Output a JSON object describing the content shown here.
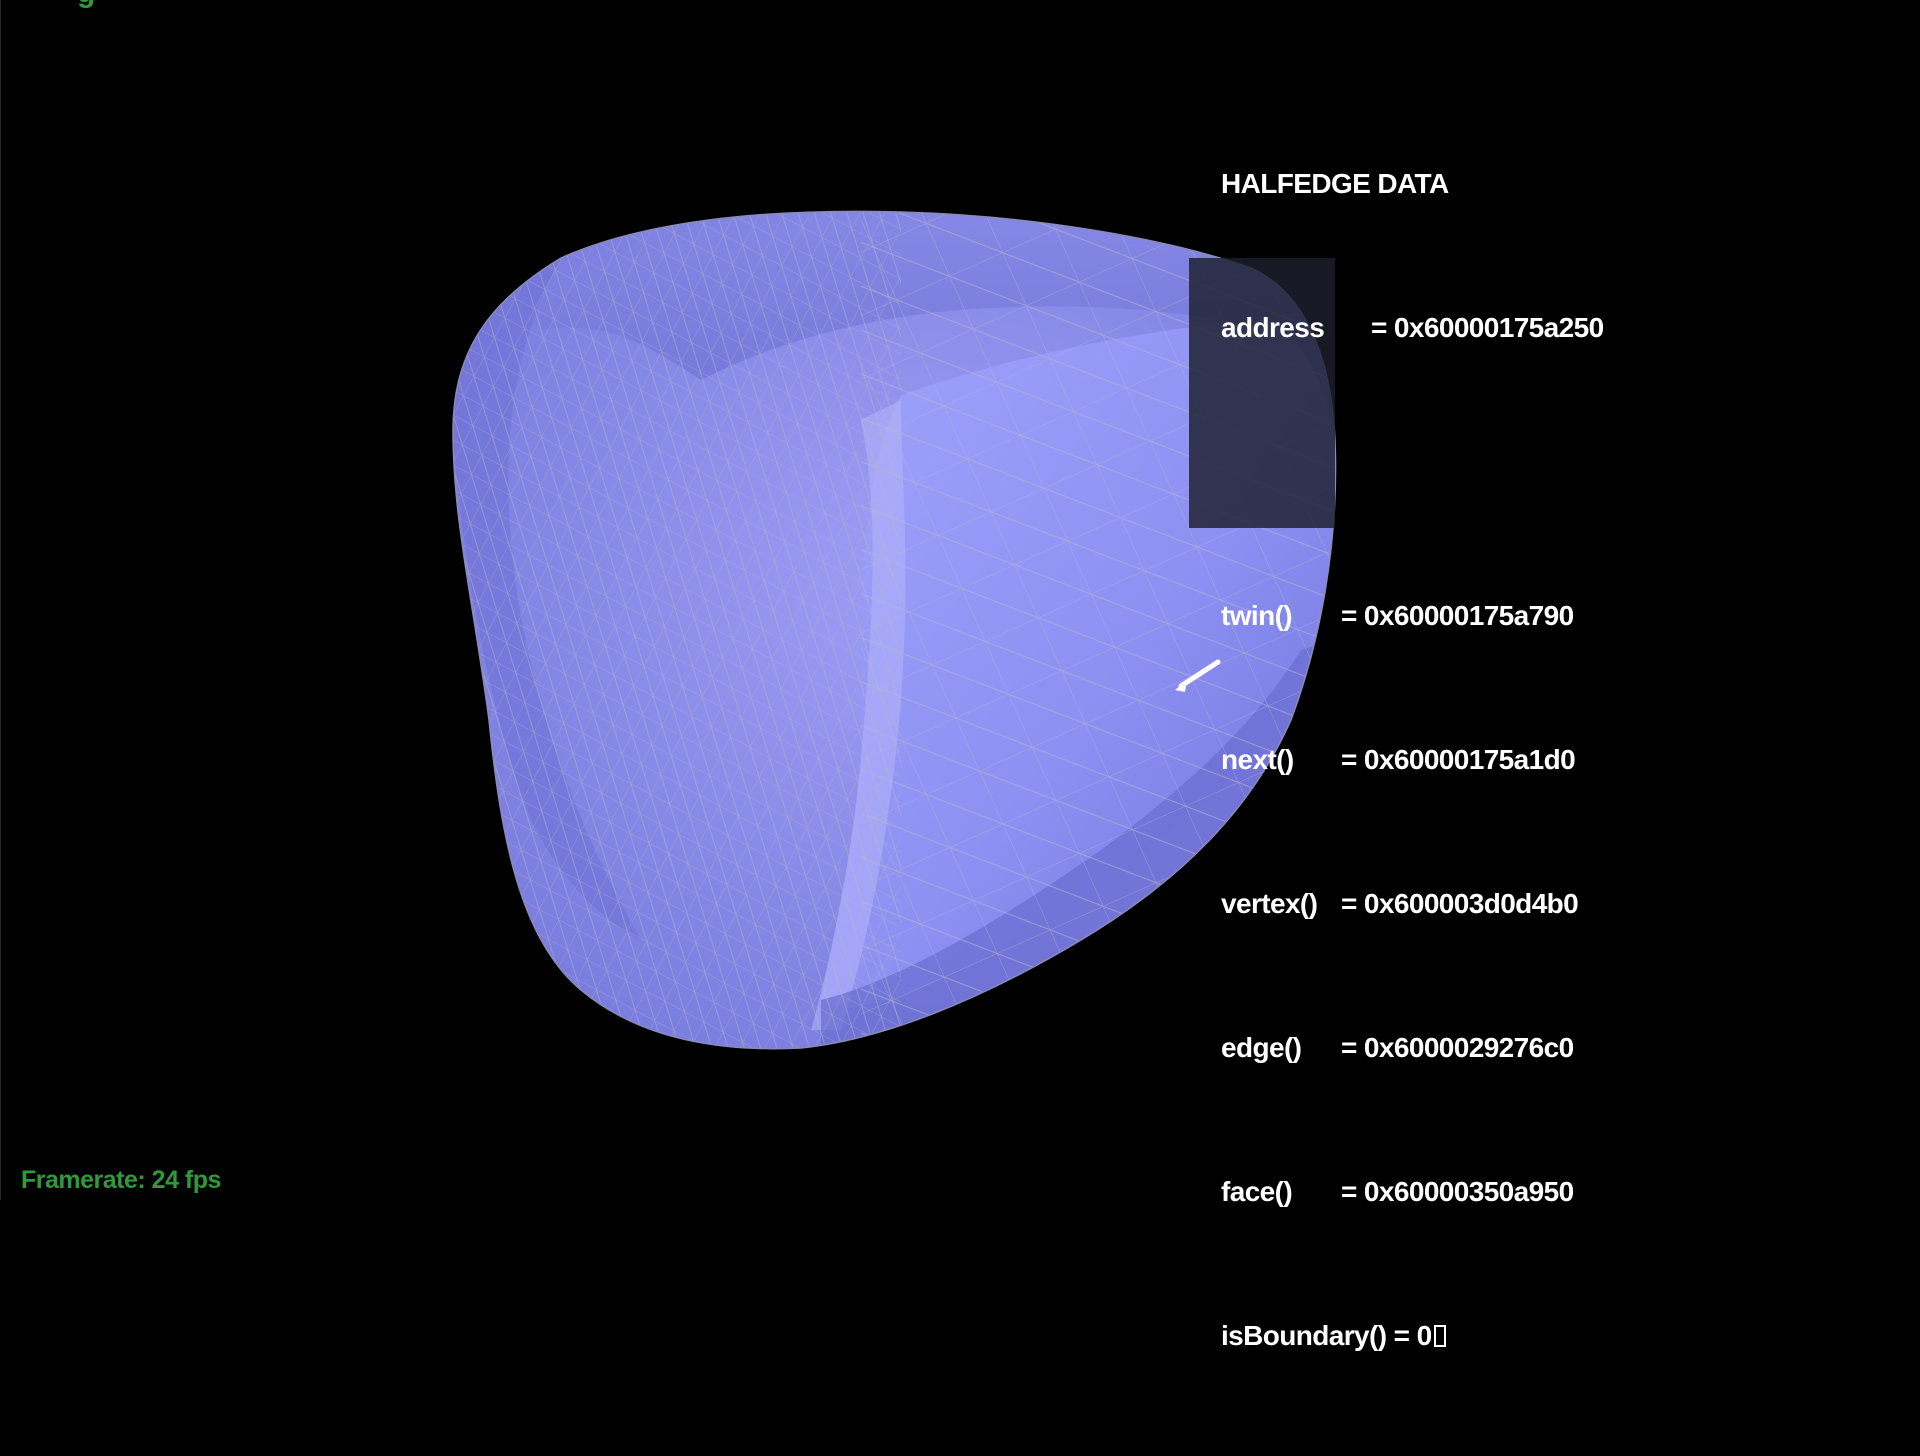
{
  "top_label": "g",
  "framerate": "Framerate: 24 fps",
  "info": {
    "title": "HALFEDGE DATA",
    "address_key": "address",
    "address_val": "= 0x60000175a250",
    "rows": [
      {
        "key": "twin()",
        "val": "= 0x60000175a790"
      },
      {
        "key": "next()",
        "val": "= 0x60000175a1d0"
      },
      {
        "key": "vertex()",
        "val": "= 0x600003d0d4b0"
      },
      {
        "key": "edge()",
        "val": "= 0x6000029276c0"
      },
      {
        "key": "face()",
        "val": "= 0x60000350a950"
      }
    ],
    "boundary_key": "isBoundary()",
    "boundary_val": "= 0"
  },
  "colors": {
    "mesh_fill": "#8c8ef0",
    "mesh_shadow": "#6a6cd0",
    "wire": "#a8a8b8",
    "text_green": "#2f9a3a",
    "panel_bg": "#1c1e2c"
  }
}
